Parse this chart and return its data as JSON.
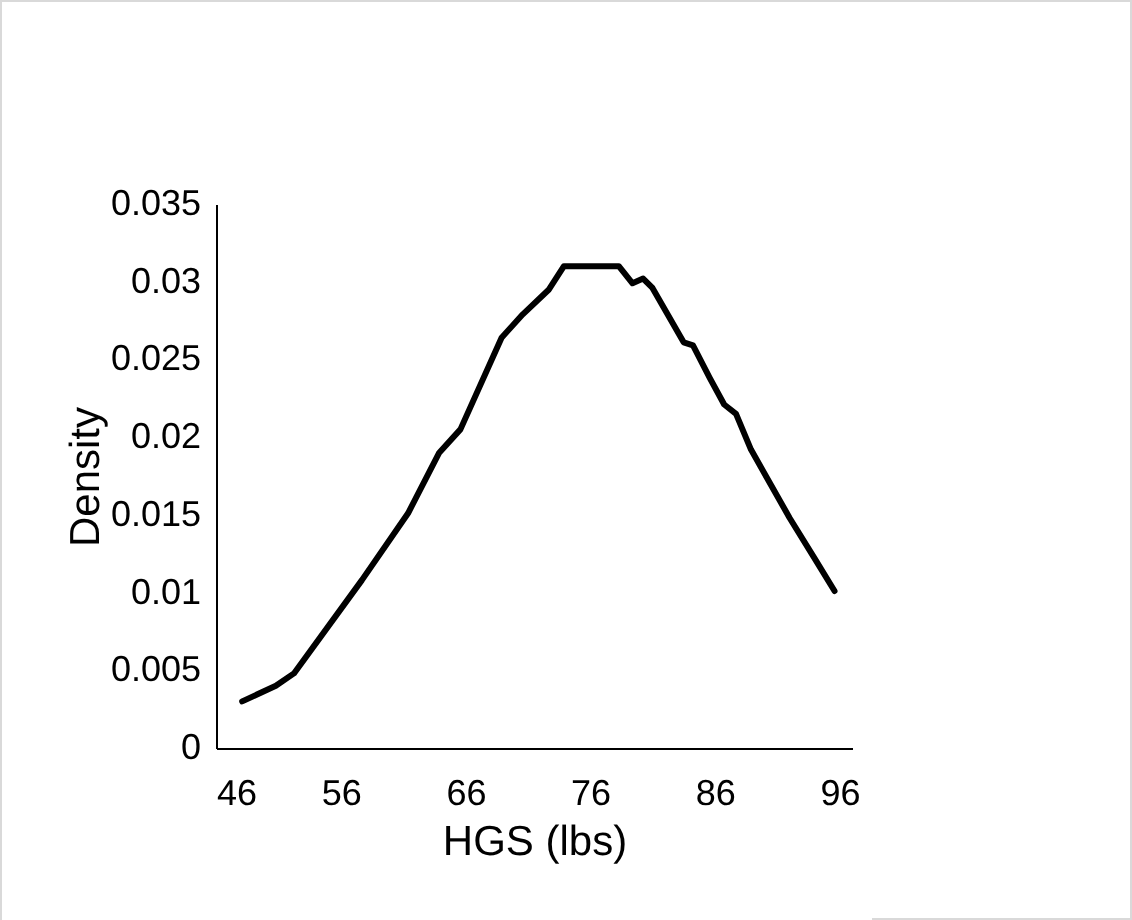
{
  "chart_data": {
    "type": "line",
    "xlabel": "HGS (lbs)",
    "ylabel": "Density",
    "x": [
      48.1,
      50.8,
      52.25,
      57.7,
      61.4,
      63.9,
      65.6,
      68.9,
      70.6,
      72.7,
      73.9,
      78.3,
      79.4,
      80.25,
      81.0,
      83.5,
      84.25,
      85.6,
      86.75,
      87.7,
      88.9,
      92,
      94,
      95.6
    ],
    "series": [
      {
        "color": "#000000",
        "values": [
          0.003,
          0.004,
          0.0048,
          0.0108,
          0.0151,
          0.019,
          0.0205,
          0.0264,
          0.0279,
          0.0295,
          0.031,
          0.031,
          0.0299,
          0.0302,
          0.0296,
          0.0261,
          0.0259,
          0.0238,
          0.0221,
          0.0215,
          0.0192,
          0.0148,
          0.0122,
          0.0101
        ]
      }
    ],
    "xlim": [
      46,
      97
    ],
    "xticks": [
      46,
      56,
      66,
      76,
      86,
      96
    ],
    "ylim": [
      0,
      0.035
    ],
    "yticks": [
      0,
      0.005,
      0.01,
      0.015,
      0.02,
      0.025,
      0.03,
      0.035
    ],
    "grid": false,
    "legend": false,
    "marker": "none",
    "line_style": "solid"
  }
}
